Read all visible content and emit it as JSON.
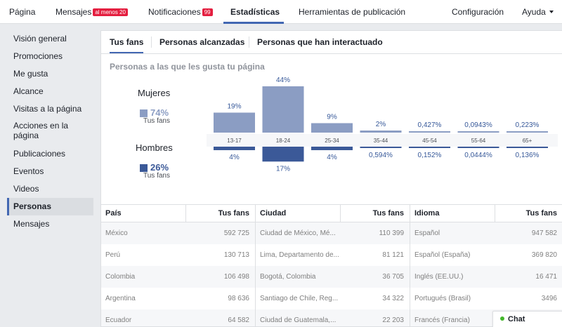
{
  "colors": {
    "accent": "#4267b2",
    "women_bar": "#8b9dc3",
    "men_bar": "#3b5998",
    "badge": "#e41e3f",
    "online": "#42b72a"
  },
  "topnav": {
    "items": [
      {
        "label": "Página"
      },
      {
        "label": "Mensajes",
        "badge": "al menos 20"
      },
      {
        "label": "Notificaciones",
        "badge": "99"
      },
      {
        "label": "Estadísticas",
        "active": true
      },
      {
        "label": "Herramientas de publicación"
      },
      {
        "label": "Configuración"
      },
      {
        "label": "Ayuda"
      }
    ]
  },
  "sidebar": {
    "items": [
      {
        "label": "Visión general"
      },
      {
        "label": "Promociones"
      },
      {
        "label": "Me gusta"
      },
      {
        "label": "Alcance"
      },
      {
        "label": "Visitas a la página"
      },
      {
        "label": "Acciones en la página"
      },
      {
        "label": "Publicaciones"
      },
      {
        "label": "Eventos"
      },
      {
        "label": "Videos"
      },
      {
        "label": "Personas",
        "active": true
      },
      {
        "label": "Mensajes"
      }
    ]
  },
  "subtabs": [
    {
      "label": "Tus fans",
      "active": true
    },
    {
      "label": "Personas alcanzadas"
    },
    {
      "label": "Personas que han interactuado"
    }
  ],
  "chart_data": {
    "type": "bar",
    "title": "Personas a las que les gusta tu página",
    "categories": [
      "13-17",
      "18-24",
      "25-34",
      "35-44",
      "45-54",
      "55-64",
      "65+"
    ],
    "series": [
      {
        "name": "Mujeres",
        "values": [
          19,
          44,
          9,
          2,
          0.427,
          0.0943,
          0.223
        ],
        "labels": [
          "19%",
          "44%",
          "9%",
          "2%",
          "0,427%",
          "0,0943%",
          "0,223%"
        ]
      },
      {
        "name": "Hombres",
        "values": [
          4,
          17,
          4,
          0.594,
          0.152,
          0.0444,
          0.136
        ],
        "labels": [
          "4%",
          "17%",
          "4%",
          "0,594%",
          "0,152%",
          "0,0444%",
          "0,136%"
        ]
      }
    ],
    "ylim": [
      0,
      44
    ]
  },
  "gender": {
    "women": {
      "label": "Mujeres",
      "pct": "74%",
      "sub": "Tus fans"
    },
    "men": {
      "label": "Hombres",
      "pct": "26%",
      "sub": "Tus fans"
    }
  },
  "tables": [
    {
      "headers": [
        "País",
        "Tus fans"
      ],
      "rows": [
        [
          "México",
          "592 725"
        ],
        [
          "Perú",
          "130 713"
        ],
        [
          "Colombia",
          "106 498"
        ],
        [
          "Argentina",
          "98 636"
        ],
        [
          "Ecuador",
          "64 582"
        ]
      ]
    },
    {
      "headers": [
        "Ciudad",
        "Tus fans"
      ],
      "rows": [
        [
          "Ciudad de México, Mé...",
          "110 399"
        ],
        [
          "Lima, Departamento de...",
          "81 121"
        ],
        [
          "Bogotá, Colombia",
          "36 705"
        ],
        [
          "Santiago de Chile, Reg...",
          "34 322"
        ],
        [
          "Ciudad de Guatemala,...",
          "22 203"
        ]
      ]
    },
    {
      "headers": [
        "Idioma",
        "Tus fans"
      ],
      "rows": [
        [
          "Español",
          "947 582"
        ],
        [
          "Español (España)",
          "369 820"
        ],
        [
          "Inglés (EE.UU.)",
          "16 471"
        ],
        [
          "Portugués (Brasil)",
          "3496"
        ],
        [
          "Francés (Francia)",
          ""
        ]
      ]
    }
  ],
  "chat": {
    "label": "Chat"
  }
}
